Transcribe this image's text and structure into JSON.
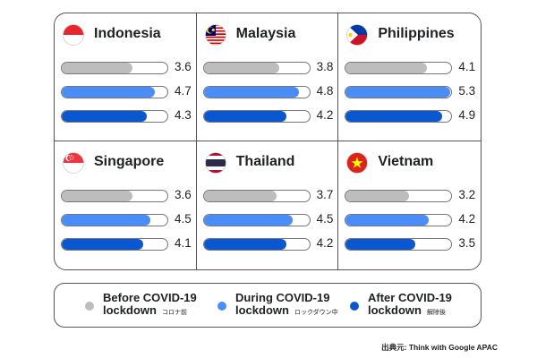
{
  "colors": {
    "before": "#bdbdbd",
    "during": "#4b8df8",
    "after": "#0b57d0"
  },
  "chart_data": {
    "type": "bar",
    "orientation": "horizontal",
    "layout": "small-multiples 3x2",
    "series": [
      {
        "name": "Before COVID-19 lockdown",
        "key": "before"
      },
      {
        "name": "During COVID-19 lockdown",
        "key": "during"
      },
      {
        "name": "After COVID-19 lockdown",
        "key": "after"
      }
    ],
    "panels": [
      {
        "country": "Indonesia",
        "flag": "indonesia-flag-icon",
        "values": [
          3.6,
          4.7,
          4.3
        ],
        "labels": [
          "3.6",
          "4.7",
          "4.3"
        ]
      },
      {
        "country": "Malaysia",
        "flag": "malaysia-flag-icon",
        "values": [
          3.8,
          4.8,
          4.2
        ],
        "labels": [
          "3.8",
          "4.8",
          "4.2"
        ]
      },
      {
        "country": "Philippines",
        "flag": "philippines-flag-icon",
        "values": [
          4.1,
          5.3,
          4.9
        ],
        "labels": [
          "4.1",
          "5.3",
          "4.9"
        ]
      },
      {
        "country": "Singapore",
        "flag": "singapore-flag-icon",
        "values": [
          3.6,
          4.5,
          4.1
        ],
        "labels": [
          "3.6",
          "4.5",
          "4.1"
        ]
      },
      {
        "country": "Thailand",
        "flag": "thailand-flag-icon",
        "values": [
          3.7,
          4.5,
          4.2
        ],
        "labels": [
          "3.7",
          "4.5",
          "4.2"
        ]
      },
      {
        "country": "Vietnam",
        "flag": "vietnam-flag-icon",
        "values": [
          3.2,
          4.2,
          3.5
        ],
        "labels": [
          "3.2",
          "4.2",
          "3.5"
        ]
      }
    ],
    "xlim": [
      0,
      5.3
    ]
  },
  "legend": [
    {
      "line1": "Before COVID-19",
      "line2": "lockdown",
      "jp": "コロナ前",
      "key": "before"
    },
    {
      "line1": "During COVID-19",
      "line2": "lockdown",
      "jp": "ロックダウン中",
      "key": "during"
    },
    {
      "line1": "After COVID-19",
      "line2": "lockdown",
      "jp": "解除後",
      "key": "after"
    }
  ],
  "source": "出典元: Think with Google APAC"
}
